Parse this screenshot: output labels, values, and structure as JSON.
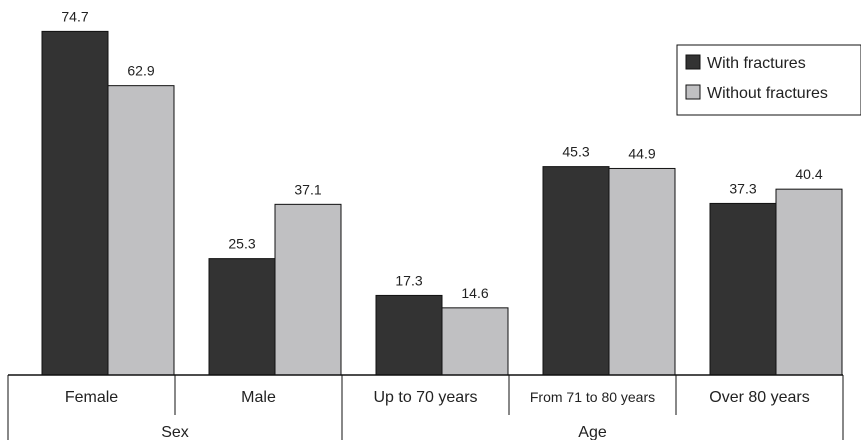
{
  "chart_data": {
    "type": "bar",
    "categories": [
      "Female",
      "Male",
      "Up to 70 years",
      "From 71 to 80 years",
      "Over 80 years"
    ],
    "groups": [
      {
        "label": "Sex",
        "categories": [
          "Female",
          "Male"
        ]
      },
      {
        "label": "Age",
        "categories": [
          "Up to 70 years",
          "From 71 to 80 years",
          "Over 80 years"
        ]
      }
    ],
    "series": [
      {
        "name": "With fractures",
        "color": "#333333",
        "values": [
          74.7,
          25.3,
          17.3,
          45.3,
          37.3
        ]
      },
      {
        "name": "Without fractures",
        "color": "#c0c0c2",
        "values": [
          62.9,
          37.1,
          14.6,
          44.9,
          40.4
        ]
      }
    ],
    "ylim": [
      0,
      100
    ],
    "legend": "top-right",
    "grid": false
  }
}
